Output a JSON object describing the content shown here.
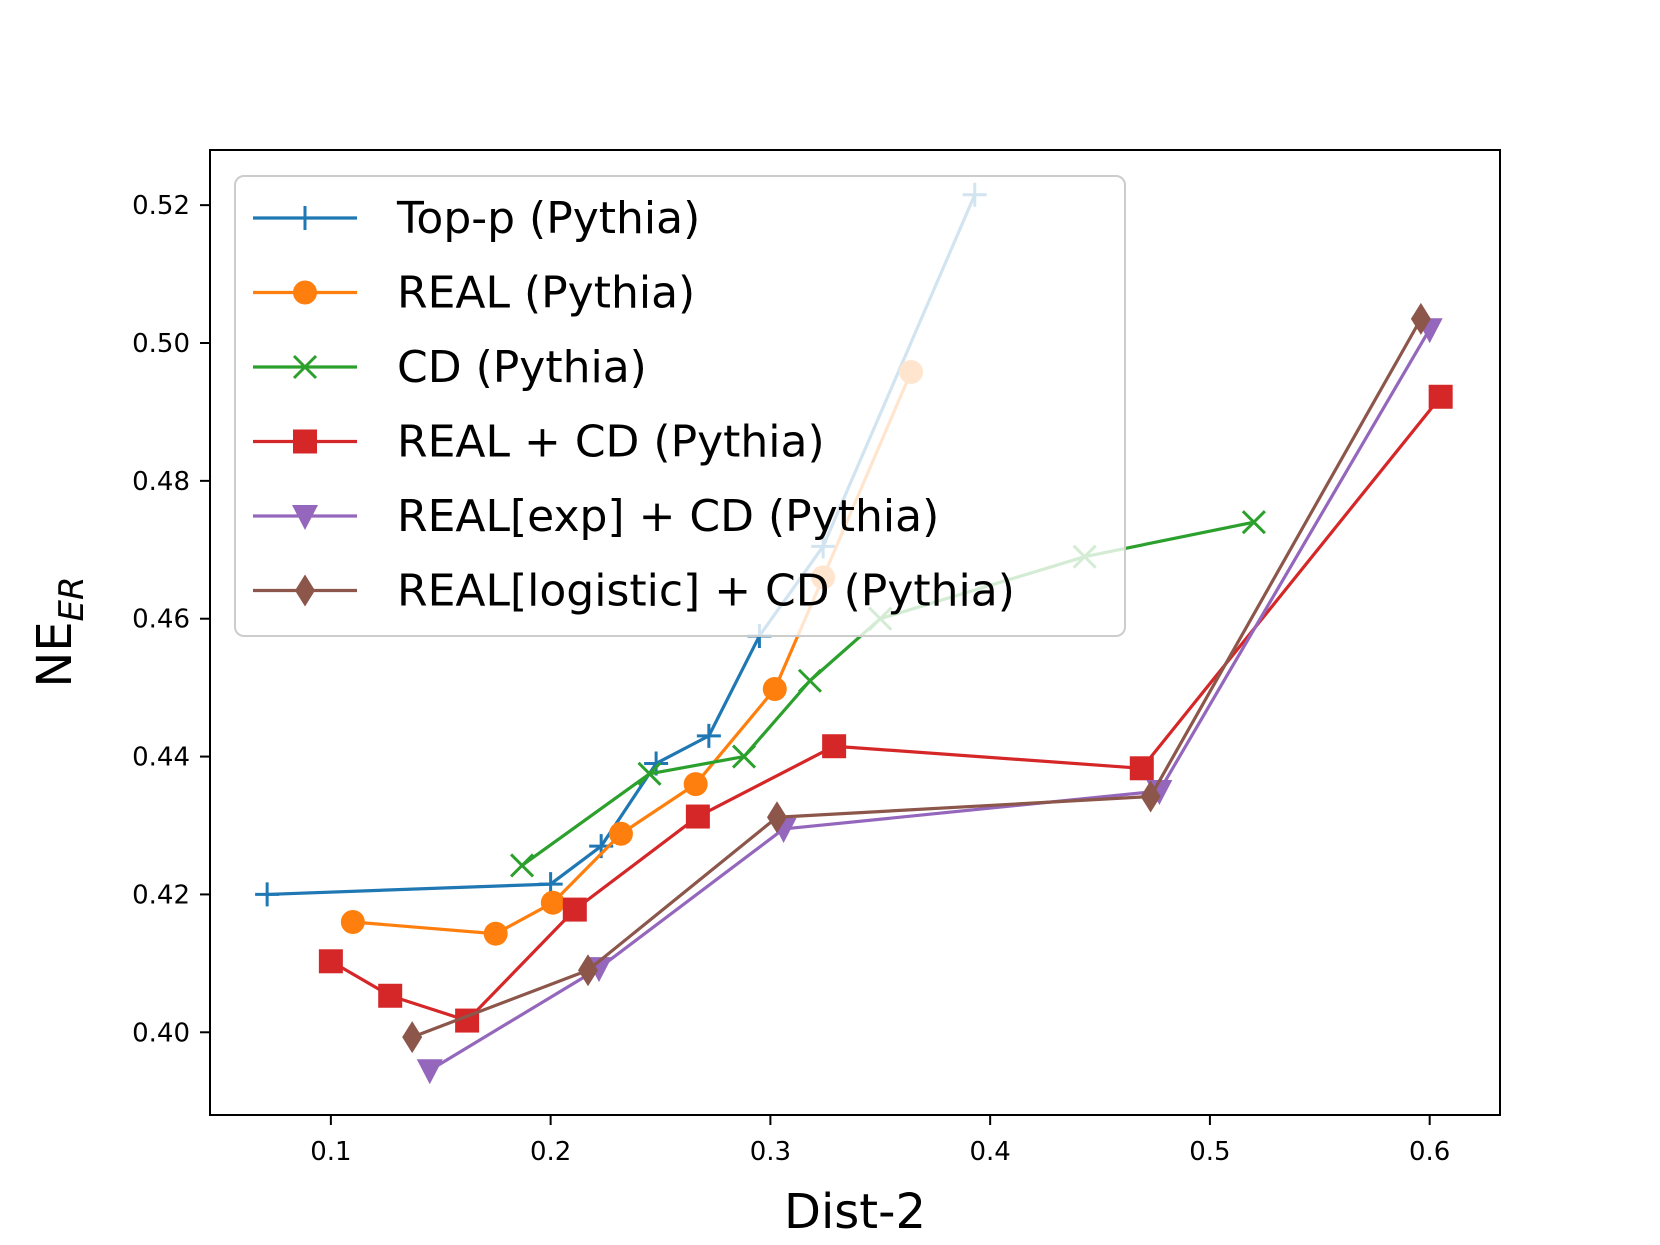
{
  "chart_data": {
    "type": "line",
    "xlabel": "Dist-2",
    "ylabel_main": "NE",
    "ylabel_sub": "ER",
    "xlim": [
      0.045,
      0.632
    ],
    "ylim": [
      0.388,
      0.528
    ],
    "xticks": [
      0.1,
      0.2,
      0.3,
      0.4,
      0.5,
      0.6
    ],
    "xtick_labels": [
      "0.1",
      "0.2",
      "0.3",
      "0.4",
      "0.5",
      "0.6"
    ],
    "yticks": [
      0.4,
      0.42,
      0.44,
      0.46,
      0.48,
      0.5,
      0.52
    ],
    "ytick_labels": [
      "0.40",
      "0.42",
      "0.44",
      "0.46",
      "0.48",
      "0.50",
      "0.52"
    ],
    "grid": false,
    "legend_position": "upper-left",
    "series": [
      {
        "name": "Top-p (Pythia)",
        "color": "#1f77b4",
        "marker": "plus",
        "points": [
          [
            0.071,
            0.42
          ],
          [
            0.2,
            0.4215
          ],
          [
            0.223,
            0.427
          ],
          [
            0.248,
            0.439
          ],
          [
            0.272,
            0.443
          ],
          [
            0.295,
            0.4575
          ],
          [
            0.324,
            0.4705
          ],
          [
            0.393,
            0.5215
          ]
        ]
      },
      {
        "name": "REAL (Pythia)",
        "color": "#ff7f0e",
        "marker": "circle",
        "points": [
          [
            0.11,
            0.416
          ],
          [
            0.175,
            0.4143
          ],
          [
            0.201,
            0.4188
          ],
          [
            0.232,
            0.4288
          ],
          [
            0.266,
            0.436
          ],
          [
            0.302,
            0.4498
          ],
          [
            0.324,
            0.466
          ],
          [
            0.364,
            0.4958
          ]
        ]
      },
      {
        "name": "CD (Pythia)",
        "color": "#2ca02c",
        "marker": "x",
        "points": [
          [
            0.187,
            0.4242
          ],
          [
            0.245,
            0.4375
          ],
          [
            0.288,
            0.44
          ],
          [
            0.318,
            0.451
          ],
          [
            0.35,
            0.46
          ],
          [
            0.443,
            0.469
          ],
          [
            0.52,
            0.474
          ]
        ]
      },
      {
        "name": "REAL + CD (Pythia)",
        "color": "#d62728",
        "marker": "square",
        "points": [
          [
            0.1,
            0.4103
          ],
          [
            0.127,
            0.4053
          ],
          [
            0.162,
            0.4017
          ],
          [
            0.211,
            0.4178
          ],
          [
            0.267,
            0.4313
          ],
          [
            0.329,
            0.4415
          ],
          [
            0.469,
            0.4383
          ],
          [
            0.605,
            0.4922
          ]
        ]
      },
      {
        "name": "REAL[exp] + CD (Pythia)",
        "color": "#9467bd",
        "marker": "triangle-down",
        "points": [
          [
            0.145,
            0.3945
          ],
          [
            0.222,
            0.4093
          ],
          [
            0.306,
            0.4295
          ],
          [
            0.477,
            0.435
          ],
          [
            0.6,
            0.502
          ]
        ]
      },
      {
        "name": "REAL[logistic] + CD (Pythia)",
        "color": "#8c564b",
        "marker": "diamond",
        "points": [
          [
            0.137,
            0.3993
          ],
          [
            0.217,
            0.409
          ],
          [
            0.303,
            0.4312
          ],
          [
            0.473,
            0.4342
          ],
          [
            0.596,
            0.5035
          ]
        ]
      }
    ]
  }
}
